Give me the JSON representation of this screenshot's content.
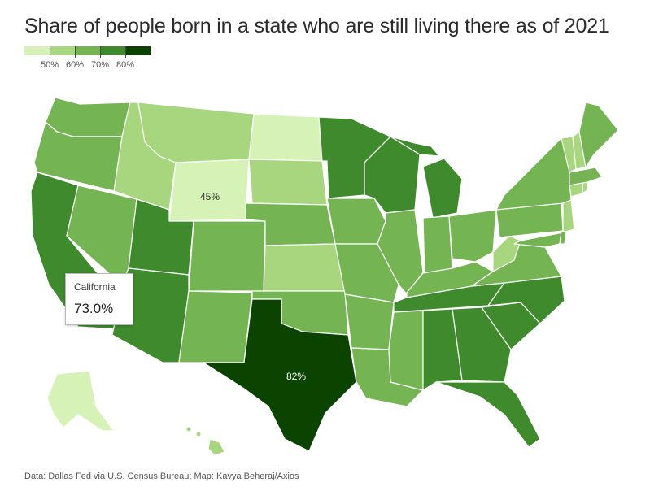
{
  "title": "Share of people born in a state who are still living there as of 2021",
  "legend": {
    "colors": [
      "#d6f2b6",
      "#a7d67f",
      "#74b452",
      "#3e8a2c",
      "#0b4400"
    ],
    "labels": [
      "50%",
      "60%",
      "70%",
      "80%"
    ]
  },
  "map_labels": {
    "wyoming": "45%",
    "texas": "82%"
  },
  "tooltip": {
    "state": "California",
    "value": "73.0%"
  },
  "source": {
    "prefix": "Data: ",
    "link": "Dallas Fed",
    "suffix": " via U.S. Census Bureau; Map: Kavya Beheraj/Axios"
  },
  "colors": {
    "c1": "#d6f2b6",
    "c2": "#a7d67f",
    "c3": "#74b452",
    "c4": "#3e8a2c",
    "c5": "#0b4400"
  }
}
